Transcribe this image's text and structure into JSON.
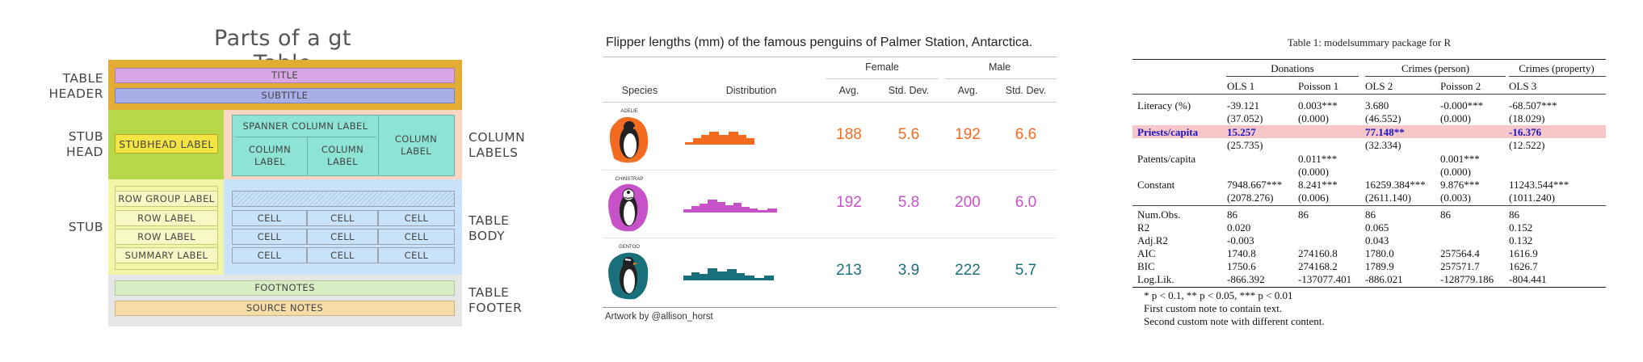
{
  "gt_parts": {
    "title": "Parts of a gt Table",
    "side_labels": {
      "table_header": "TABLE\nHEADER",
      "stub_head": "STUB\nHEAD",
      "stub": "STUB",
      "column_labels": "COLUMN\nLABELS",
      "table_body": "TABLE\nBODY",
      "table_footer": "TABLE\nFOOTER"
    },
    "boxes": {
      "title": "TITLE",
      "subtitle": "SUBTITLE",
      "stubhead_label": "STUBHEAD LABEL",
      "spanner_column_label": "SPANNER COLUMN LABEL",
      "column_label": "COLUMN\nLABEL",
      "row_group_label": "ROW GROUP LABEL",
      "row_label": "ROW LABEL",
      "summary_label": "SUMMARY LABEL",
      "cell": "CELL",
      "footnotes": "FOOTNOTES",
      "source_notes": "SOURCE NOTES"
    },
    "colors": {
      "header_band": "#e3ad33",
      "title_box": "#d9a7e6",
      "subtitle_box": "#a8aee8",
      "stubhead_band": "#b6d94c",
      "stubhead_label": "#f4e545",
      "column_band": "#fbd6c2",
      "column_label_box": "#8de3d6",
      "stub_band": "#f3f6a9",
      "body_band": "#c8e2f9",
      "footer_band": "#e6e6e6",
      "footnotes_box": "#d8edc4",
      "source_notes_box": "#f6dca6"
    }
  },
  "penguins": {
    "title": "Flipper lengths (mm) of the famous penguins of Palmer Station, Antarctica.",
    "spanners": [
      "Female",
      "Male"
    ],
    "columns": [
      "Species",
      "Distribution",
      "Avg.",
      "Std. Dev.",
      "Avg.",
      "Std. Dev."
    ],
    "rows": [
      {
        "species_art": "ADELIE",
        "color": "#f26b21",
        "female_avg": "188",
        "female_sd": "5.6",
        "male_avg": "192",
        "male_sd": "6.6"
      },
      {
        "species_art": "CHINSTRAP",
        "color": "#c651c9",
        "female_avg": "192",
        "female_sd": "5.8",
        "male_avg": "200",
        "male_sd": "6.0"
      },
      {
        "species_art": "GENTOO",
        "color": "#19707a",
        "female_avg": "213",
        "female_sd": "3.9",
        "male_avg": "222",
        "male_sd": "5.7"
      }
    ],
    "caption": "Artwork by @allison_horst"
  },
  "modelsummary": {
    "caption": "Table 1: modelsummary package for R",
    "spanners": [
      "Donations",
      "Crimes (person)",
      "Crimes (property)"
    ],
    "models": [
      "OLS 1",
      "Poisson 1",
      "OLS 2",
      "Poisson 2",
      "OLS 3"
    ],
    "coef_rows": [
      {
        "label": "Literacy (%)",
        "est": [
          "-39.121",
          "0.003***",
          "3.680",
          "-0.000***",
          "-68.507***"
        ],
        "se": [
          "(37.052)",
          "(0.000)",
          "(46.552)",
          "(0.000)",
          "(18.029)"
        ]
      },
      {
        "label": "Priests/capita",
        "est": [
          "15.257",
          "",
          "77.148**",
          "",
          "-16.376"
        ],
        "se": [
          "(25.735)",
          "",
          "(32.334)",
          "",
          "(12.522)"
        ],
        "highlight": true
      },
      {
        "label": "Patents/capita",
        "est": [
          "",
          "0.011***",
          "",
          "0.001***",
          ""
        ],
        "se": [
          "",
          "(0.000)",
          "",
          "(0.000)",
          ""
        ]
      },
      {
        "label": "Constant",
        "est": [
          "7948.667***",
          "8.241***",
          "16259.384***",
          "9.876***",
          "11243.544***"
        ],
        "se": [
          "(2078.276)",
          "(0.006)",
          "(2611.140)",
          "(0.003)",
          "(1011.240)"
        ]
      }
    ],
    "gof_rows": [
      {
        "label": "Num.Obs.",
        "vals": [
          "86",
          "86",
          "86",
          "86",
          "86"
        ]
      },
      {
        "label": "R2",
        "vals": [
          "0.020",
          "",
          "0.065",
          "",
          "0.152"
        ]
      },
      {
        "label": "Adj.R2",
        "vals": [
          "-0.003",
          "",
          "0.043",
          "",
          "0.132"
        ]
      },
      {
        "label": "AIC",
        "vals": [
          "1740.8",
          "274160.8",
          "1780.0",
          "257564.4",
          "1616.9"
        ]
      },
      {
        "label": "BIC",
        "vals": [
          "1750.6",
          "274168.2",
          "1789.9",
          "257571.7",
          "1626.7"
        ]
      },
      {
        "label": "Log.Lik.",
        "vals": [
          "-866.392",
          "-137077.401",
          "-886.021",
          "-128779.186",
          "-804.441"
        ]
      }
    ],
    "notes": [
      "* p < 0.1, ** p < 0.05, *** p < 0.01",
      "First custom note to contain text.",
      "Second custom note with different content."
    ],
    "highlight_color": "#f7c6c9"
  }
}
